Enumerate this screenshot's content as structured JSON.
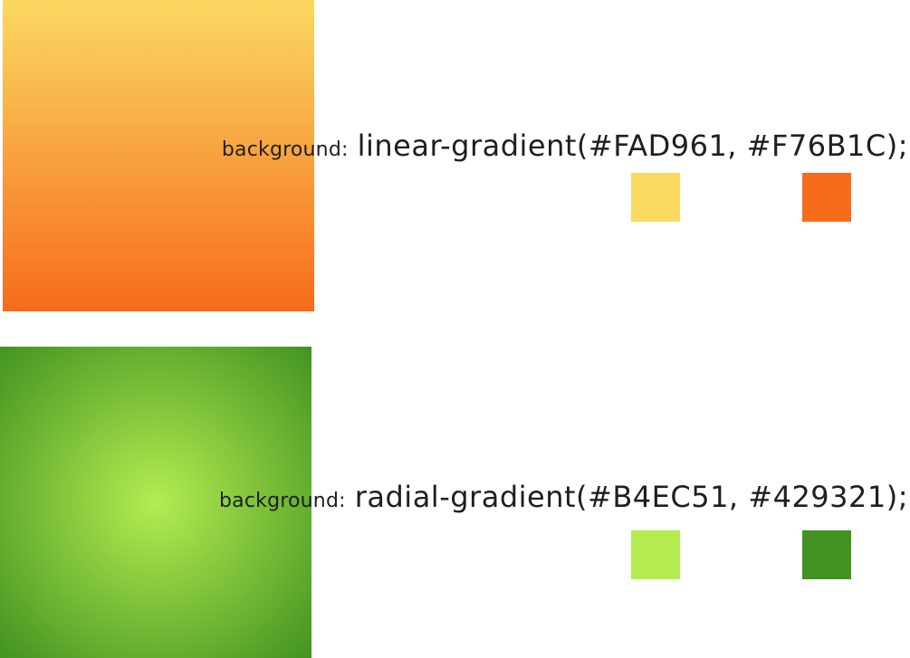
{
  "linear": {
    "property_label": "background:",
    "value": "linear-gradient(#FAD961, #F76B1C);",
    "color_start": "#FAD961",
    "color_end": "#F76B1C"
  },
  "radial": {
    "property_label": "background:",
    "value": "radial-gradient(#B4EC51, #429321);",
    "color_start": "#B4EC51",
    "color_end": "#429321"
  }
}
